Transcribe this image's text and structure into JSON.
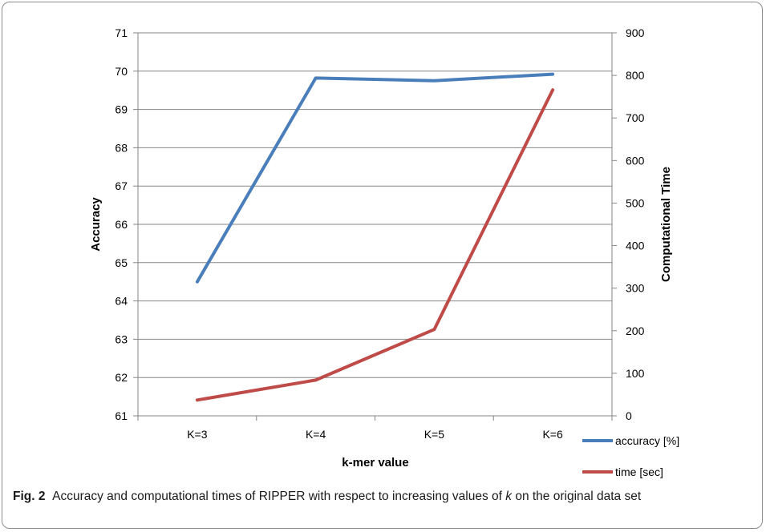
{
  "chart_data": {
    "type": "line",
    "categories": [
      "K=3",
      "K=4",
      "K=5",
      "K=6"
    ],
    "xlabel": "k-mer value",
    "y_left": {
      "label": "Accuracy",
      "ylim": [
        61,
        71
      ],
      "ticks": [
        61,
        62,
        63,
        64,
        65,
        66,
        67,
        68,
        69,
        70,
        71
      ]
    },
    "y_right": {
      "label": "Computational Time",
      "ylim": [
        0,
        900
      ],
      "ticks": [
        0,
        100,
        200,
        300,
        400,
        500,
        600,
        700,
        800,
        900
      ]
    },
    "grid": true,
    "legend_position": "bottom-right",
    "series": [
      {
        "name": "accuracy [%]",
        "axis": "left",
        "color": "#4a7ebb",
        "values": [
          64.5,
          69.82,
          69.75,
          69.92
        ]
      },
      {
        "name": "time [sec]",
        "axis": "right",
        "color": "#be4b48",
        "values": [
          37,
          84,
          203,
          766
        ]
      }
    ]
  },
  "caption": {
    "label": "Fig. 2",
    "text_before": "Accuracy and computational times of RIPPER with respect to increasing values of ",
    "variable": "k",
    "text_after": " on the original data set"
  }
}
